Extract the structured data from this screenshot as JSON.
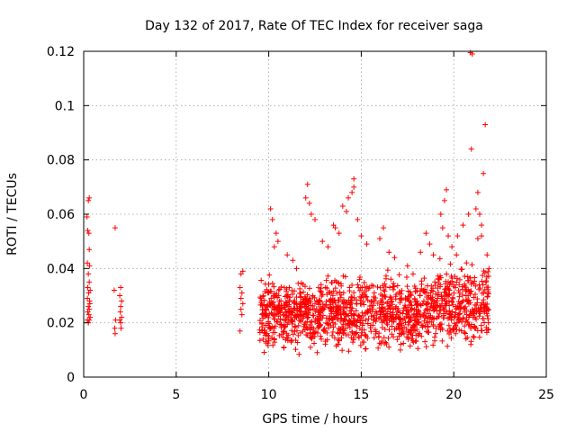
{
  "chart_data": {
    "type": "scatter",
    "title": "Day 132 of 2017, Rate Of TEC Index for receiver saga",
    "xlabel": "GPS time / hours",
    "ylabel": "ROTI / TECUs",
    "xlim": [
      0,
      25
    ],
    "ylim": [
      0,
      0.12
    ],
    "xticks": [
      0,
      5,
      10,
      15,
      20,
      25
    ],
    "xtick_labels": [
      "0",
      "5",
      "10",
      "15",
      "20",
      "25"
    ],
    "yticks": [
      0,
      0.02,
      0.04,
      0.06,
      0.08,
      0.1,
      0.12
    ],
    "ytick_labels": [
      "0",
      "0.02",
      "0.04",
      "0.06",
      "0.08",
      "0.1",
      "0.12"
    ],
    "grid": true,
    "marker": "+",
    "marker_color": "#ff0000",
    "series": [
      {
        "name": "ROTI",
        "points": [
          [
            0.18,
            0.059
          ],
          [
            0.25,
            0.065
          ],
          [
            0.3,
            0.066
          ],
          [
            0.22,
            0.054
          ],
          [
            0.28,
            0.053
          ],
          [
            0.3,
            0.047
          ],
          [
            0.2,
            0.042
          ],
          [
            0.32,
            0.041
          ],
          [
            0.25,
            0.038
          ],
          [
            0.3,
            0.035
          ],
          [
            0.22,
            0.033
          ],
          [
            0.35,
            0.032
          ],
          [
            0.27,
            0.031
          ],
          [
            0.2,
            0.029
          ],
          [
            0.32,
            0.028
          ],
          [
            0.25,
            0.026
          ],
          [
            0.3,
            0.025
          ],
          [
            0.22,
            0.024
          ],
          [
            0.28,
            0.023
          ],
          [
            0.35,
            0.022
          ],
          [
            0.2,
            0.021
          ],
          [
            0.3,
            0.021
          ],
          [
            0.25,
            0.02
          ],
          [
            0.33,
            0.027
          ],
          [
            1.7,
            0.055
          ],
          [
            1.65,
            0.032
          ],
          [
            1.72,
            0.021
          ],
          [
            1.68,
            0.018
          ],
          [
            1.7,
            0.016
          ],
          [
            2.0,
            0.033
          ],
          [
            1.95,
            0.03
          ],
          [
            2.05,
            0.028
          ],
          [
            2.0,
            0.026
          ],
          [
            1.98,
            0.024
          ],
          [
            2.05,
            0.022
          ],
          [
            1.95,
            0.021
          ],
          [
            2.0,
            0.02
          ],
          [
            2.02,
            0.018
          ],
          [
            8.5,
            0.038
          ],
          [
            8.6,
            0.039
          ],
          [
            8.45,
            0.033
          ],
          [
            8.55,
            0.031
          ],
          [
            8.5,
            0.029
          ],
          [
            8.6,
            0.027
          ],
          [
            8.5,
            0.025
          ],
          [
            8.55,
            0.023
          ],
          [
            8.45,
            0.017
          ],
          [
            10.1,
            0.062
          ],
          [
            10.2,
            0.058
          ],
          [
            10.4,
            0.053
          ],
          [
            10.5,
            0.05
          ],
          [
            10.3,
            0.048
          ],
          [
            11.0,
            0.045
          ],
          [
            11.3,
            0.043
          ],
          [
            11.5,
            0.04
          ],
          [
            12.1,
            0.071
          ],
          [
            12.0,
            0.066
          ],
          [
            12.2,
            0.064
          ],
          [
            12.3,
            0.06
          ],
          [
            12.5,
            0.058
          ],
          [
            12.9,
            0.05
          ],
          [
            13.2,
            0.048
          ],
          [
            13.5,
            0.056
          ],
          [
            13.6,
            0.055
          ],
          [
            13.8,
            0.053
          ],
          [
            14.0,
            0.063
          ],
          [
            14.2,
            0.061
          ],
          [
            14.3,
            0.066
          ],
          [
            14.5,
            0.068
          ],
          [
            14.6,
            0.073
          ],
          [
            14.6,
            0.07
          ],
          [
            14.8,
            0.058
          ],
          [
            15.0,
            0.052
          ],
          [
            15.3,
            0.049
          ],
          [
            16.2,
            0.055
          ],
          [
            16.0,
            0.051
          ],
          [
            16.5,
            0.046
          ],
          [
            16.8,
            0.044
          ],
          [
            17.5,
            0.041
          ],
          [
            17.8,
            0.038
          ],
          [
            18.2,
            0.046
          ],
          [
            18.5,
            0.053
          ],
          [
            18.7,
            0.049
          ],
          [
            18.9,
            0.045
          ],
          [
            19.3,
            0.06
          ],
          [
            19.5,
            0.065
          ],
          [
            19.6,
            0.069
          ],
          [
            19.4,
            0.055
          ],
          [
            19.7,
            0.052
          ],
          [
            19.9,
            0.048
          ],
          [
            20.2,
            0.052
          ],
          [
            20.5,
            0.056
          ],
          [
            20.8,
            0.06
          ],
          [
            20.9,
            0.1195
          ],
          [
            21.0,
            0.119
          ],
          [
            20.95,
            0.084
          ],
          [
            21.3,
            0.068
          ],
          [
            21.2,
            0.062
          ],
          [
            21.4,
            0.06
          ],
          [
            21.5,
            0.056
          ],
          [
            21.6,
            0.075
          ],
          [
            21.7,
            0.093
          ],
          [
            21.5,
            0.052
          ],
          [
            21.3,
            0.051
          ],
          [
            21.8,
            0.045
          ],
          [
            21.9,
            0.04
          ]
        ],
        "cloud": {
          "x_range": [
            9.5,
            21.9
          ],
          "y_range": [
            0.006,
            0.045
          ],
          "count": 1400,
          "approx_center": 0.023
        }
      }
    ]
  }
}
